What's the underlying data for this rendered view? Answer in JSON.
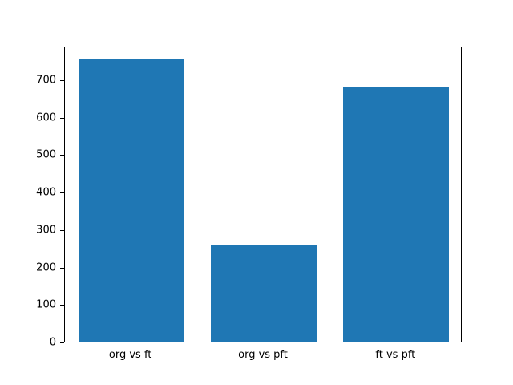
{
  "chart_data": {
    "type": "bar",
    "categories": [
      "org vs ft",
      "org vs pft",
      "ft vs pft"
    ],
    "values": [
      753,
      258,
      680
    ],
    "xlabel": "",
    "ylabel": "",
    "ylim": [
      0,
      790
    ],
    "yticks": [
      0,
      100,
      200,
      300,
      400,
      500,
      600,
      700
    ],
    "bar_color": "#1f77b4",
    "bar_width_fraction": 0.8,
    "grid": false,
    "legend": null,
    "background_color": "#ffffff"
  }
}
